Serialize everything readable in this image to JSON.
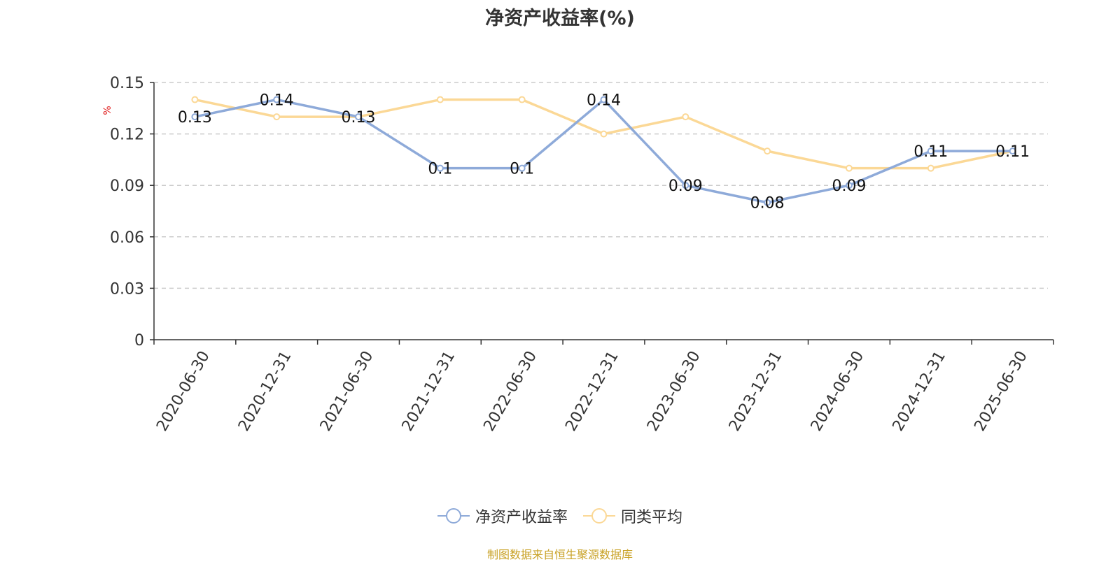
{
  "chart_data": {
    "type": "line",
    "title": "净资产收益率(%)",
    "xlabel": "",
    "ylabel": "%",
    "ylim": [
      0,
      0.15
    ],
    "yticks": [
      0,
      0.03,
      0.06,
      0.09,
      0.12,
      0.15
    ],
    "ytick_labels": [
      "0",
      "0.03",
      "0.06",
      "0.09",
      "0.12",
      "0.15"
    ],
    "grid": true,
    "legend_position": "bottom-center",
    "categories": [
      "2020-06-30",
      "2020-12-31",
      "2021-06-30",
      "2021-12-31",
      "2022-06-30",
      "2022-12-31",
      "2023-06-30",
      "2023-12-31",
      "2024-06-30",
      "2024-12-31",
      "2025-06-30"
    ],
    "series": [
      {
        "name": "净资产收益率",
        "color": "#8eaad9",
        "values": [
          0.13,
          0.14,
          0.13,
          0.1,
          0.1,
          0.14,
          0.09,
          0.08,
          0.09,
          0.11,
          0.11
        ],
        "data_labels": [
          "0.13",
          "0.14",
          "0.13",
          "0.1",
          "0.1",
          "0.14",
          "0.09",
          "0.08",
          "0.09",
          "0.11",
          "0.11"
        ]
      },
      {
        "name": "同类平均",
        "color": "#fbd896",
        "values": [
          0.14,
          0.13,
          0.13,
          0.14,
          0.14,
          0.12,
          0.13,
          0.11,
          0.1,
          0.1,
          0.11
        ]
      }
    ]
  },
  "source_note": "制图数据来自恒生聚源数据库",
  "colors": {
    "axis": "#333333",
    "grid": "#cccccc",
    "ylabel": "#e02020",
    "source": "#c9a227"
  }
}
